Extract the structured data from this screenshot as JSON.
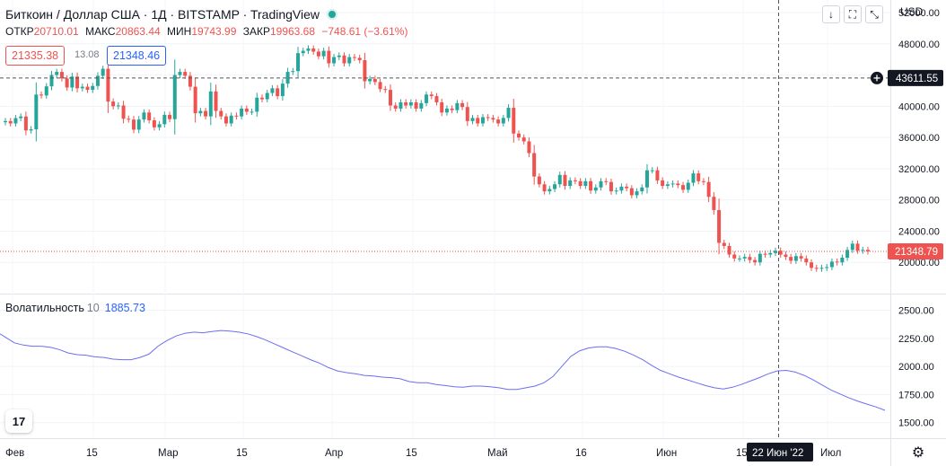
{
  "header": {
    "title": "Биткоин / Доллар США · 1Д · BITSTAMP · TradingView",
    "ohlc": [
      {
        "label": "ОТКР",
        "value": "20710.01"
      },
      {
        "label": "МАКС",
        "value": "20863.44"
      },
      {
        "label": "МИН",
        "value": "19743.99"
      },
      {
        "label": "ЗАКР",
        "value": "19963.68"
      }
    ],
    "change": "−748.61 (−3.61%)",
    "sell_price": "21335.38",
    "spread": "13.08",
    "buy_price": "21348.46",
    "currency": "USD",
    "buttons": [
      "↓",
      "⛶",
      "⤡"
    ]
  },
  "indicator": {
    "name": "Волатильность",
    "param": "10",
    "value": "1885.73"
  },
  "colors": {
    "up": "#26a69a",
    "down": "#ef5350",
    "volatility_line": "#6a6ff0",
    "crosshair": "#555555"
  },
  "crosshair": {
    "price_label": "43611.55",
    "date_label": "22 Июн '22"
  },
  "last_price_label": "21348.79",
  "icons": {
    "logo": "tradingview-logo",
    "settings": "gear-icon"
  },
  "chart_data": [
    {
      "type": "candlestick",
      "title": "Биткоин / Доллар США",
      "x_ticks": [
        "Фев",
        "15",
        "Мар",
        "15",
        "Апр",
        "15",
        "Май",
        "16",
        "Июн",
        "15",
        "Июл"
      ],
      "y_ticks": [
        "52000.00",
        "48000.00",
        "44000.00",
        "40000.00",
        "36000.00",
        "32000.00",
        "28000.00",
        "24000.00",
        "20000.00"
      ],
      "ylim": [
        16000,
        52000
      ],
      "start_date": "2022-01-28",
      "close": [
        38100,
        37800,
        38480,
        38690,
        36900,
        37050,
        41500,
        41380,
        42550,
        44010,
        44400,
        43560,
        42400,
        43800,
        42300,
        42500,
        42100,
        42600,
        43900,
        44800,
        40600,
        40000,
        40100,
        38400,
        38300,
        37000,
        38300,
        39200,
        38200,
        37300,
        37700,
        38900,
        38350,
        44000,
        44400,
        43900,
        42500,
        39100,
        39400,
        38700,
        41900,
        39400,
        38700,
        37800,
        38800,
        38700,
        39700,
        39300,
        39300,
        41100,
        40900,
        41700,
        42300,
        41300,
        42900,
        44400,
        44500,
        46800,
        47100,
        47400,
        47000,
        46400,
        47100,
        45500,
        46300,
        46500,
        45500,
        46300,
        46200,
        45900,
        43200,
        43500,
        43100,
        42200,
        42100,
        40100,
        39700,
        40500,
        40100,
        40500,
        39700,
        40400,
        41500,
        41300,
        40500,
        39200,
        39700,
        39500,
        40400,
        39900,
        38100,
        38500,
        37800,
        38600,
        38500,
        38300,
        37800,
        38500,
        39800,
        36500,
        36000,
        35500,
        34000,
        31000,
        30000,
        29100,
        29400,
        30000,
        31200,
        29800,
        30500,
        30400,
        29800,
        30400,
        29200,
        29600,
        30400,
        30300,
        29100,
        29200,
        29700,
        29500,
        28600,
        29100,
        29600,
        31800,
        31800,
        30500,
        29800,
        30000,
        30100,
        29900,
        29300,
        30200,
        31400,
        30400,
        30300,
        28400,
        26700,
        22500,
        22100,
        21000,
        20500,
        20500,
        20700,
        20300,
        20000,
        21100,
        21000,
        21200,
        21500,
        21000,
        20700,
        20200,
        20800,
        20500,
        20000,
        19300,
        19200,
        19300,
        19400,
        20100,
        20000,
        20600,
        21600,
        22400,
        21500,
        21600,
        21400
      ]
    },
    {
      "type": "line",
      "series": [
        {
          "name": "Волатильность 10"
        }
      ],
      "y_ticks": [
        "2500.00",
        "2250.00",
        "2000.00",
        "1750.00",
        "1500.00"
      ],
      "ylim": [
        1370,
        2640
      ],
      "points": [
        [
          0,
          2290
        ],
        [
          8,
          2250
        ],
        [
          16,
          2210
        ],
        [
          26,
          2190
        ],
        [
          36,
          2180
        ],
        [
          46,
          2180
        ],
        [
          56,
          2170
        ],
        [
          66,
          2150
        ],
        [
          76,
          2120
        ],
        [
          86,
          2105
        ],
        [
          96,
          2100
        ],
        [
          106,
          2085
        ],
        [
          116,
          2080
        ],
        [
          126,
          2065
        ],
        [
          136,
          2060
        ],
        [
          146,
          2060
        ],
        [
          156,
          2080
        ],
        [
          166,
          2110
        ],
        [
          176,
          2180
        ],
        [
          186,
          2230
        ],
        [
          196,
          2270
        ],
        [
          206,
          2295
        ],
        [
          216,
          2305
        ],
        [
          226,
          2300
        ],
        [
          236,
          2310
        ],
        [
          246,
          2320
        ],
        [
          256,
          2315
        ],
        [
          266,
          2305
        ],
        [
          276,
          2290
        ],
        [
          286,
          2265
        ],
        [
          296,
          2235
        ],
        [
          306,
          2200
        ],
        [
          316,
          2165
        ],
        [
          326,
          2130
        ],
        [
          336,
          2095
        ],
        [
          346,
          2060
        ],
        [
          356,
          2030
        ],
        [
          366,
          1990
        ],
        [
          376,
          1960
        ],
        [
          386,
          1945
        ],
        [
          396,
          1935
        ],
        [
          406,
          1920
        ],
        [
          416,
          1915
        ],
        [
          426,
          1905
        ],
        [
          436,
          1900
        ],
        [
          446,
          1890
        ],
        [
          456,
          1865
        ],
        [
          466,
          1855
        ],
        [
          476,
          1855
        ],
        [
          486,
          1840
        ],
        [
          496,
          1830
        ],
        [
          506,
          1820
        ],
        [
          516,
          1815
        ],
        [
          526,
          1825
        ],
        [
          536,
          1825
        ],
        [
          546,
          1820
        ],
        [
          556,
          1810
        ],
        [
          566,
          1795
        ],
        [
          576,
          1795
        ],
        [
          586,
          1810
        ],
        [
          596,
          1825
        ],
        [
          606,
          1855
        ],
        [
          616,
          1910
        ],
        [
          626,
          2000
        ],
        [
          636,
          2090
        ],
        [
          646,
          2140
        ],
        [
          656,
          2165
        ],
        [
          666,
          2175
        ],
        [
          676,
          2175
        ],
        [
          686,
          2160
        ],
        [
          696,
          2135
        ],
        [
          706,
          2100
        ],
        [
          716,
          2060
        ],
        [
          726,
          2010
        ],
        [
          736,
          1965
        ],
        [
          746,
          1935
        ],
        [
          756,
          1905
        ],
        [
          766,
          1880
        ],
        [
          776,
          1855
        ],
        [
          786,
          1830
        ],
        [
          796,
          1810
        ],
        [
          806,
          1800
        ],
        [
          816,
          1815
        ],
        [
          826,
          1840
        ],
        [
          836,
          1870
        ],
        [
          846,
          1900
        ],
        [
          856,
          1935
        ],
        [
          866,
          1960
        ],
        [
          876,
          1965
        ],
        [
          886,
          1950
        ],
        [
          896,
          1920
        ],
        [
          906,
          1880
        ],
        [
          916,
          1835
        ],
        [
          926,
          1790
        ],
        [
          936,
          1755
        ],
        [
          946,
          1720
        ],
        [
          956,
          1690
        ],
        [
          966,
          1665
        ],
        [
          976,
          1640
        ],
        [
          986,
          1610
        ]
      ]
    }
  ]
}
